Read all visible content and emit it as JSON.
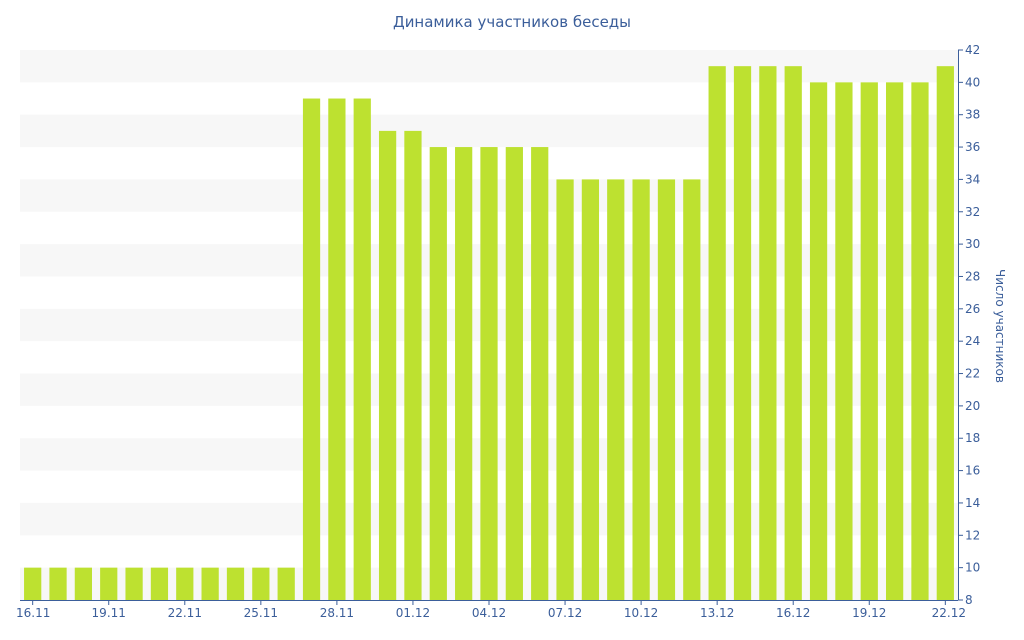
{
  "chart_data": {
    "type": "bar",
    "title": "Динамика участников беседы",
    "xlabel": "",
    "ylabel": "Число участников",
    "ylim": [
      8,
      42
    ],
    "y_ticks": [
      8,
      10,
      12,
      14,
      16,
      18,
      20,
      22,
      24,
      26,
      28,
      30,
      32,
      34,
      36,
      38,
      40,
      42
    ],
    "y_axis_position": "right",
    "grid": "alternating horizontal bands",
    "legend": "none",
    "categories": [
      "16.11",
      "17.11",
      "18.11",
      "19.11",
      "20.11",
      "21.11",
      "22.11",
      "23.11",
      "24.11",
      "25.11",
      "26.11",
      "27.11",
      "28.11",
      "29.11",
      "30.11",
      "01.12",
      "02.12",
      "03.12",
      "04.12",
      "05.12",
      "06.12",
      "07.12",
      "08.12",
      "09.12",
      "10.12",
      "11.12",
      "12.12",
      "13.12",
      "14.12",
      "15.12",
      "16.12",
      "17.12",
      "18.12",
      "19.12",
      "20.12",
      "21.12",
      "22.12"
    ],
    "x_tick_labels": [
      "16.11",
      "19.11",
      "22.11",
      "25.11",
      "28.11",
      "01.12",
      "04.12",
      "07.12",
      "10.12",
      "13.12",
      "16.12",
      "19.12",
      "22.12"
    ],
    "values": [
      10,
      10,
      10,
      10,
      10,
      10,
      10,
      10,
      10,
      10,
      10,
      39,
      39,
      39,
      37,
      37,
      36,
      36,
      36,
      36,
      36,
      34,
      34,
      34,
      34,
      34,
      34,
      41,
      41,
      41,
      41,
      40,
      40,
      40,
      40,
      40,
      41
    ],
    "colors": {
      "bar": "#bde130",
      "band": "#f7f7f7",
      "text": "#3b5e9a",
      "axis": "#3b5e9a"
    }
  }
}
